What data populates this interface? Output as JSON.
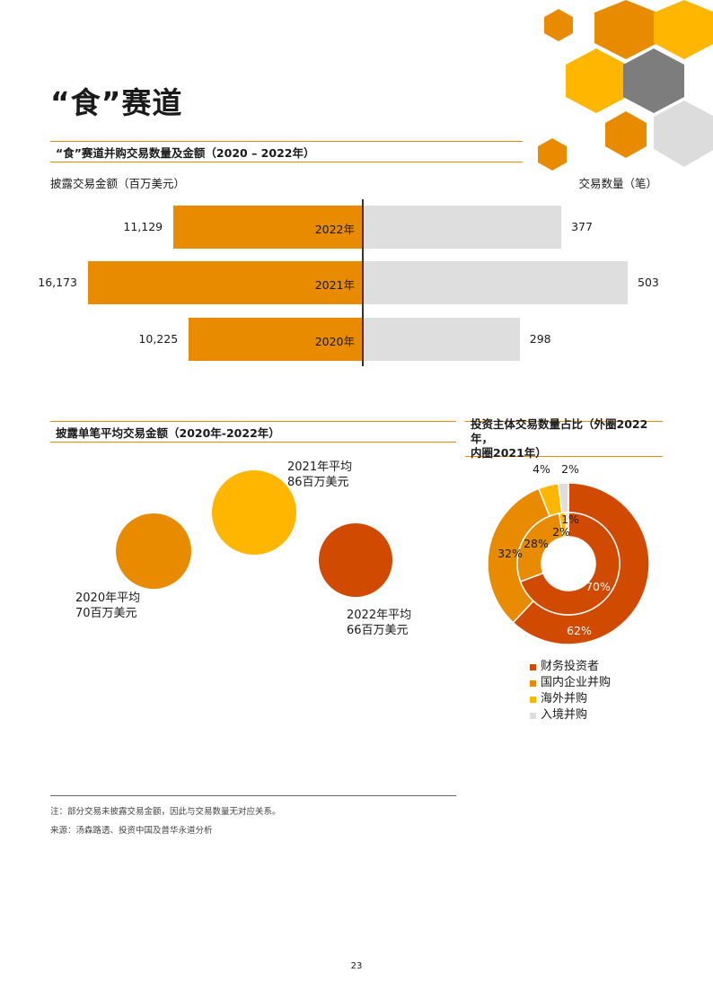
{
  "colors": {
    "accent_orange": "#e88b00",
    "dark_orange": "#d04a02",
    "gold": "#ffb600",
    "grey_bar": "#dedede",
    "grey_hex": "#7d7d7d",
    "light_grey_hex": "#dcdcdc"
  },
  "page": {
    "title": "“食”赛道",
    "page_number": "23"
  },
  "bar_section": {
    "heading": "“食”赛道并购交易数量及金额（2020 – 2022年）",
    "left_axis_label": "披露交易金额（百万美元）",
    "right_axis_label": "交易数量（笔）"
  },
  "bubble_section": {
    "heading": "披露单笔平均交易金额（2020年-2022年）",
    "captions": [
      {
        "line1": "2021年平均",
        "line2": "86百万美元"
      },
      {
        "line1": "2020年平均",
        "line2": "70百万美元"
      },
      {
        "line1": "2022年平均",
        "line2": "66百万美元"
      }
    ]
  },
  "donut_section": {
    "heading_line1": "投资主体交易数量占比（外圈2022年，",
    "heading_line2": "内圈2021年）"
  },
  "notes": {
    "note": "注：部分交易未披露交易金额，因此与交易数量无对应关系。",
    "source": "来源：汤森路透、投资中国及普华永道分析"
  },
  "chart_data": [
    {
      "type": "bar",
      "title": "“食”赛道并购交易数量及金额（2020 – 2022年）",
      "categories": [
        "2022年",
        "2021年",
        "2020年"
      ],
      "series": [
        {
          "name": "披露交易金额（百万美元）",
          "values": [
            11129,
            16173,
            10225
          ],
          "value_labels": [
            "11,129",
            "16,173",
            "10,225"
          ],
          "color": "#e88b00"
        },
        {
          "name": "交易数量（笔）",
          "values": [
            377,
            503,
            298
          ],
          "value_labels": [
            "377",
            "503",
            "298"
          ],
          "color": "#dedede"
        }
      ]
    },
    {
      "type": "scatter",
      "title": "披露单笔平均交易金额（2020年-2022年）",
      "categories": [
        "2021年",
        "2020年",
        "2022年"
      ],
      "values": [
        86,
        70,
        66
      ],
      "colors": [
        "#ffb600",
        "#e88b00",
        "#d04a02"
      ]
    },
    {
      "type": "pie",
      "title": "投资主体交易数量占比（外圈2022年，内圈2021年）",
      "categories": [
        "财务投资者",
        "国内企业并购",
        "海外并购",
        "入境并购"
      ],
      "colors": [
        "#d04a02",
        "#e88b00",
        "#ffb600",
        "#dedede"
      ],
      "series": [
        {
          "name": "外圈2022年",
          "values": [
            62,
            32,
            4,
            2
          ],
          "value_labels": [
            "62%",
            "32%",
            "4%",
            "2%"
          ]
        },
        {
          "name": "内圈2021年",
          "values": [
            70,
            28,
            2,
            1
          ],
          "value_labels": [
            "70%",
            "28%",
            "2%",
            "1%"
          ]
        }
      ]
    }
  ]
}
